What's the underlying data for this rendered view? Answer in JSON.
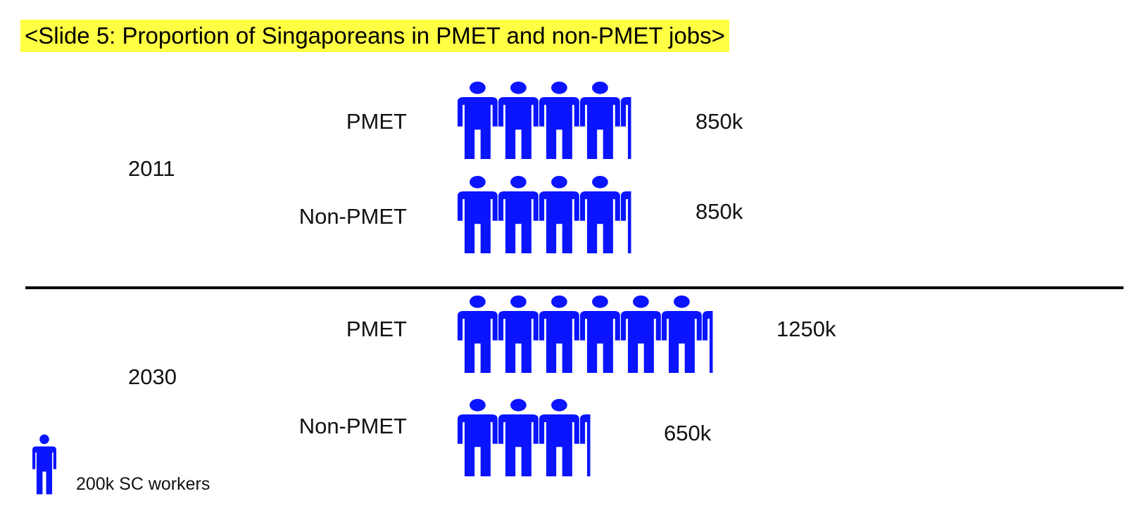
{
  "title": "<Slide 5: Proportion of Singaporeans in PMET and non-PMET jobs>",
  "chart_data": {
    "type": "pictograph",
    "unit_per_icon": 200,
    "unit": "k",
    "icon_color": "#0a14ff",
    "groups": [
      {
        "year": "2011",
        "rows": [
          {
            "category": "PMET",
            "value": 850,
            "label": "850k"
          },
          {
            "category": "Non-PMET",
            "value": 850,
            "label": "850k"
          }
        ]
      },
      {
        "year": "2030",
        "rows": [
          {
            "category": "PMET",
            "value": 1250,
            "label": "1250k"
          },
          {
            "category": "Non-PMET",
            "value": 650,
            "label": "650k"
          }
        ]
      }
    ],
    "legend": {
      "label": "200k SC workers",
      "icon": "person-icon"
    }
  }
}
